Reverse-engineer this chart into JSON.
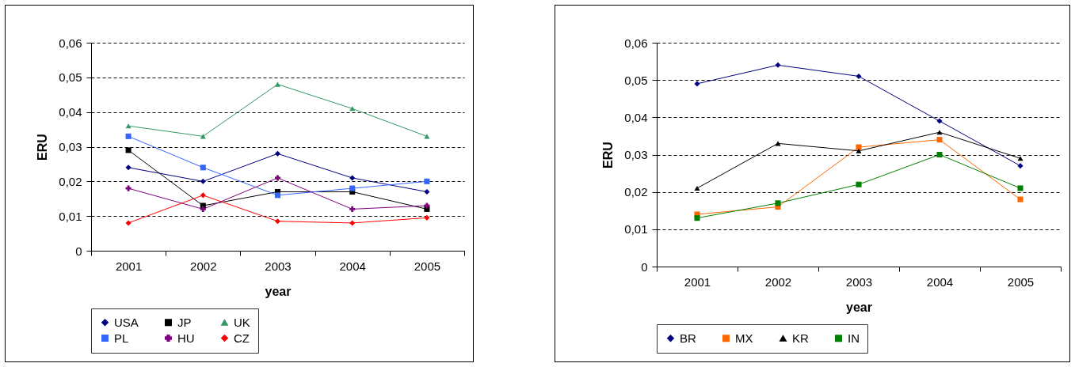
{
  "chart_data": [
    {
      "type": "line",
      "xlabel": "year",
      "ylabel": "ERU",
      "categories": [
        "2001",
        "2002",
        "2003",
        "2004",
        "2005"
      ],
      "ylim": [
        0,
        0.06
      ],
      "yticks": [
        0,
        {
          "value": 0.01,
          "label": "0,01"
        },
        {
          "value": 0.02,
          "label": "0,02"
        },
        {
          "value": 0.03,
          "label": "0,03"
        },
        {
          "value": 0.04,
          "label": "0,04"
        },
        {
          "value": 0.05,
          "label": "0,05"
        },
        {
          "value": 0.06,
          "label": "0,06"
        }
      ],
      "grid": "y",
      "legend": "bottom",
      "line_style": "solid",
      "series": [
        {
          "name": "USA",
          "color": "#000080",
          "marker": "diamond",
          "values": [
            0.024,
            0.02,
            0.028,
            0.021,
            0.017
          ]
        },
        {
          "name": "JP",
          "color": "#000000",
          "marker": "square",
          "values": [
            0.029,
            0.013,
            0.017,
            0.017,
            0.012
          ]
        },
        {
          "name": "UK",
          "color": "#339966",
          "marker": "triangle",
          "values": [
            0.036,
            0.033,
            0.048,
            0.041,
            0.033
          ]
        },
        {
          "name": "PL",
          "color": "#3366ff",
          "marker": "square",
          "values": [
            0.033,
            0.024,
            0.016,
            0.018,
            0.02
          ]
        },
        {
          "name": "HU",
          "color": "#800080",
          "marker": "cross",
          "values": [
            0.018,
            0.012,
            0.021,
            0.012,
            0.013
          ]
        },
        {
          "name": "CZ",
          "color": "#ff0000",
          "marker": "diamond",
          "values": [
            0.008,
            0.016,
            0.0085,
            0.008,
            0.0095
          ]
        }
      ]
    },
    {
      "type": "line",
      "xlabel": "year",
      "ylabel": "ERU",
      "categories": [
        "2001",
        "2002",
        "2003",
        "2004",
        "2005"
      ],
      "ylim": [
        0,
        0.06
      ],
      "yticks": [
        0,
        {
          "value": 0.01,
          "label": "0,01"
        },
        {
          "value": 0.02,
          "label": "0,02"
        },
        {
          "value": 0.03,
          "label": "0,03"
        },
        {
          "value": 0.04,
          "label": "0,04"
        },
        {
          "value": 0.05,
          "label": "0,05"
        },
        {
          "value": 0.06,
          "label": "0,06"
        }
      ],
      "grid": "y",
      "legend": "bottom",
      "line_style": "solid",
      "series": [
        {
          "name": "BR",
          "color": "#000080",
          "marker": "diamond",
          "values": [
            0.049,
            0.054,
            0.051,
            0.039,
            0.027
          ]
        },
        {
          "name": "MX",
          "color": "#ff6600",
          "marker": "square",
          "values": [
            0.014,
            0.016,
            0.032,
            0.034,
            0.018
          ]
        },
        {
          "name": "KR",
          "color": "#000000",
          "marker": "triangle",
          "values": [
            0.021,
            0.033,
            0.031,
            0.036,
            0.029
          ]
        },
        {
          "name": "IN",
          "color": "#008000",
          "marker": "square",
          "values": [
            0.013,
            0.017,
            0.022,
            0.03,
            0.021
          ]
        }
      ]
    }
  ]
}
